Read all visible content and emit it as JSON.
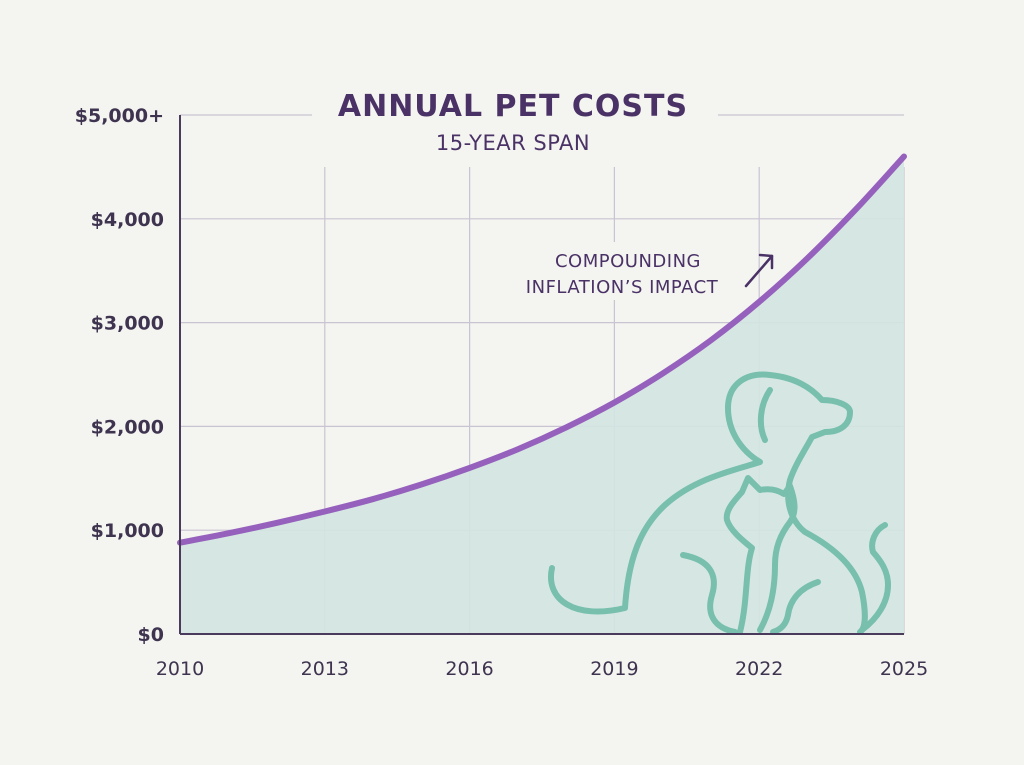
{
  "colors": {
    "background": "#f4f4f0",
    "grid": "#c9c4d2",
    "axis": "#4a3a5c",
    "line": "#9561bd",
    "area": "#d3e6e1",
    "pet_outline": "#78bfad",
    "text": "#4a3266"
  },
  "chart_data": {
    "type": "area",
    "title": "ANNUAL PET COSTS",
    "subtitle": "15-YEAR SPAN",
    "xlabel": "",
    "ylabel": "",
    "x": [
      2010,
      2011,
      2012,
      2013,
      2014,
      2015,
      2016,
      2017,
      2018,
      2019,
      2020,
      2021,
      2022,
      2023,
      2024,
      2025
    ],
    "values": [
      880,
      970,
      1070,
      1180,
      1300,
      1440,
      1600,
      1780,
      1990,
      2230,
      2510,
      2830,
      3200,
      3620,
      4090,
      4600
    ],
    "xlim": [
      2010,
      2025
    ],
    "ylim": [
      0,
      5000
    ],
    "x_ticks": [
      2010,
      2013,
      2016,
      2019,
      2022,
      2025
    ],
    "x_tick_labels": [
      "2010",
      "2013",
      "2016",
      "2019",
      "2022",
      "2025"
    ],
    "y_ticks": [
      0,
      1000,
      2000,
      3000,
      4000,
      5000
    ],
    "y_tick_labels": [
      "$0",
      "$1,000",
      "$2,000",
      "$3,000",
      "$4,000",
      "$5,000+"
    ],
    "grid": true,
    "annotation": {
      "lines": [
        "COMPOUNDING",
        "INFLATION’S IMPACT"
      ],
      "arrow": "up-right"
    },
    "illustration": "dog-and-cat-outline"
  }
}
